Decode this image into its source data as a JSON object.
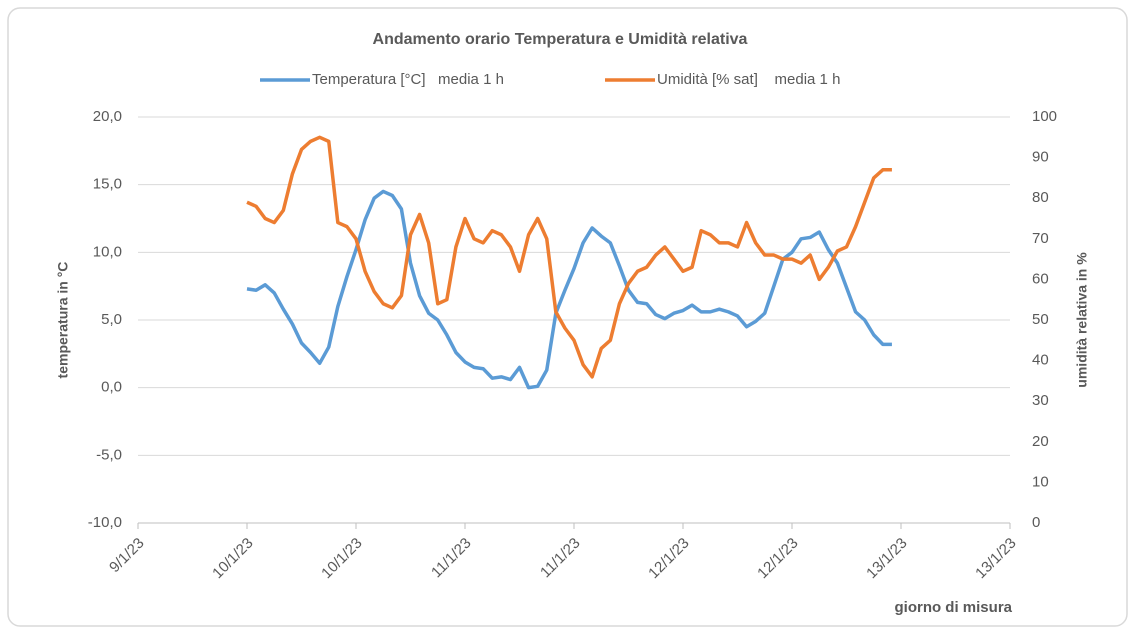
{
  "chart_data": {
    "type": "line",
    "title": "Andamento orario Temperatura e Umidità relativa",
    "y_label": "temperatura in °C",
    "y2_label": "umidità relativa in %",
    "x_label": "giorno di misura",
    "x": [
      0,
      1,
      2,
      3,
      4,
      5,
      6,
      7,
      8,
      9,
      10,
      11,
      12,
      13,
      14,
      15,
      16,
      17,
      18,
      19,
      20,
      21,
      22,
      23,
      24,
      25,
      26,
      27,
      28,
      29,
      30,
      31,
      32,
      33,
      34,
      35,
      36,
      37,
      38,
      39,
      40,
      41,
      42,
      43,
      44,
      45,
      46,
      47,
      48,
      49,
      50,
      51,
      52,
      53,
      54,
      55,
      56,
      57,
      58,
      59,
      60,
      61,
      62,
      63,
      64,
      65,
      66,
      67,
      68,
      69,
      70,
      71
    ],
    "series": [
      {
        "name": "Temperatura [°C]   media 1 h",
        "color": "#5b9bd5",
        "values": [
          7.3,
          7.2,
          7.6,
          7.0,
          5.8,
          4.7,
          3.3,
          2.6,
          1.8,
          3.0,
          6.0,
          8.2,
          10.2,
          12.4,
          14.0,
          14.5,
          14.2,
          13.2,
          9.2,
          6.8,
          5.5,
          5.0,
          3.9,
          2.6,
          1.9,
          1.5,
          1.4,
          0.7,
          0.8,
          0.6,
          1.5,
          0.0,
          0.1,
          1.3,
          5.5,
          7.2,
          8.8,
          10.7,
          11.8,
          11.2,
          10.7,
          9.0,
          7.2,
          6.3,
          6.2,
          5.4,
          5.1,
          5.5,
          5.7,
          6.1,
          5.6,
          5.6,
          5.8,
          5.6,
          5.3,
          4.5,
          4.9,
          5.5,
          7.5,
          9.5,
          10.0,
          11.0,
          11.1,
          11.5,
          10.2,
          9.2,
          7.4,
          5.6,
          5.0,
          3.9,
          3.2,
          3.2
        ]
      },
      {
        "name": "Umidità [% sat]    media 1 h",
        "color": "#ed7d31",
        "axis": "y2",
        "values": [
          79,
          78,
          75,
          74,
          77,
          86,
          92,
          94,
          95,
          94,
          74,
          73,
          70,
          62,
          57,
          54,
          53,
          56,
          71,
          76,
          69,
          54,
          55,
          68,
          75,
          70,
          69,
          72,
          71,
          68,
          62,
          71,
          75,
          70,
          52,
          48,
          45,
          39,
          36,
          43,
          45,
          54,
          59,
          62,
          63,
          66,
          68,
          65,
          62,
          63,
          72,
          71,
          69,
          69,
          68,
          74,
          69,
          66,
          66,
          65,
          65,
          64,
          66,
          60,
          63,
          67,
          68,
          73,
          79,
          85,
          87,
          87
        ]
      }
    ],
    "xlim": [
      -12,
      84
    ],
    "xticks": [
      {
        "value": -12,
        "label": "9/1/23"
      },
      {
        "value": 0,
        "label": "10/1/23"
      },
      {
        "value": 12,
        "label": "10/1/23"
      },
      {
        "value": 24,
        "label": "11/1/23"
      },
      {
        "value": 36,
        "label": "11/1/23"
      },
      {
        "value": 48,
        "label": "12/1/23"
      },
      {
        "value": 60,
        "label": "12/1/23"
      },
      {
        "value": 72,
        "label": "13/1/23"
      },
      {
        "value": 84,
        "label": "13/1/23"
      }
    ],
    "ylim": [
      -10,
      20
    ],
    "yticks": [
      {
        "value": -10,
        "label": "-10,0"
      },
      {
        "value": -5,
        "label": "-5,0"
      },
      {
        "value": 0,
        "label": "0,0"
      },
      {
        "value": 5,
        "label": "5,0"
      },
      {
        "value": 10,
        "label": "10,0"
      },
      {
        "value": 15,
        "label": "15,0"
      },
      {
        "value": 20,
        "label": "20,0"
      }
    ],
    "y2lim": [
      0,
      100
    ],
    "y2ticks": [
      0,
      10,
      20,
      30,
      40,
      50,
      60,
      70,
      80,
      90,
      100
    ],
    "grid": true,
    "legend": "top"
  }
}
